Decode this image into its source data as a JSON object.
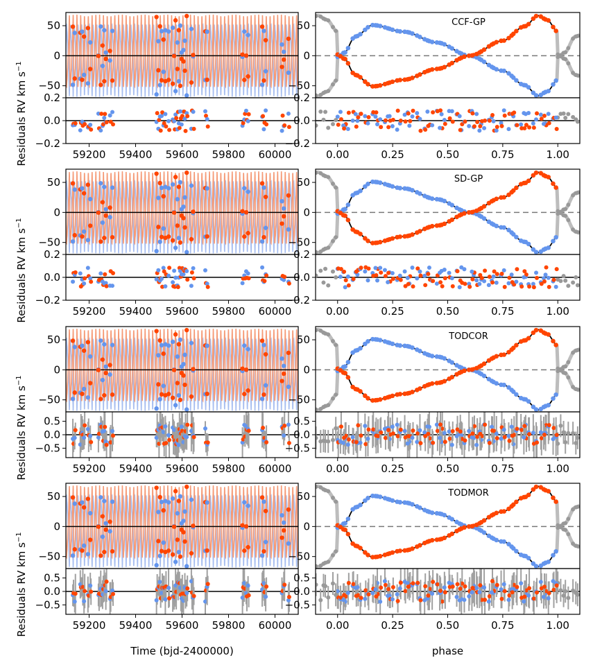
{
  "figure": {
    "colors": {
      "primary": "#6495ed",
      "secondary": "#ff4500",
      "primary_model": "#a7bef0",
      "secondary_model": "#f59a76",
      "folded": "#999999",
      "grid": "#000000"
    },
    "xlabel_time": "Time (bjd-2400000)",
    "xlabel_phase": "phase",
    "ylabel_rv": "RV km s",
    "ylabel_res": "Residuals"
  },
  "chart_data": [
    {
      "type": "scatter",
      "method": "CCF-GP",
      "panel": "time",
      "rv_ylim": [
        -70,
        72
      ],
      "rv_yticks": [
        -50,
        0,
        50
      ],
      "res_ylim": [
        -0.2,
        0.2
      ],
      "res_yticks": [
        -0.2,
        0.0,
        0.2
      ],
      "res_tick_labels": [
        "-0.2",
        "0.0",
        "0.2"
      ],
      "xlim": [
        59100,
        60100
      ],
      "xticks": [
        59200,
        59400,
        59600,
        59800,
        60000
      ],
      "error_bars": false
    },
    {
      "type": "scatter",
      "method": "CCF-GP",
      "panel": "phase",
      "title": "CCF-GP",
      "xlim": [
        -0.1,
        1.1
      ],
      "xticks": [
        0.0,
        0.25,
        0.5,
        0.75,
        1.0
      ],
      "xtick_labels": [
        "0.00",
        "0.25",
        "0.50",
        "0.75",
        "1.00"
      ]
    },
    {
      "type": "scatter",
      "method": "SD-GP",
      "panel": "time",
      "rv_ylim": [
        -70,
        72
      ],
      "rv_yticks": [
        -50,
        0,
        50
      ],
      "res_ylim": [
        -0.2,
        0.2
      ],
      "res_yticks": [
        -0.2,
        0.0,
        0.2
      ],
      "res_tick_labels": [
        "-0.2",
        "0.0",
        "0.2"
      ],
      "xlim": [
        59100,
        60100
      ],
      "xticks": [
        59200,
        59400,
        59600,
        59800,
        60000
      ],
      "error_bars": false
    },
    {
      "type": "scatter",
      "method": "SD-GP",
      "panel": "phase",
      "title": "SD-GP",
      "xlim": [
        -0.1,
        1.1
      ],
      "xticks": [
        0.0,
        0.25,
        0.5,
        0.75,
        1.0
      ],
      "xtick_labels": [
        "0.00",
        "0.25",
        "0.50",
        "0.75",
        "1.00"
      ]
    },
    {
      "type": "scatter",
      "method": "TODCOR",
      "panel": "time",
      "rv_ylim": [
        -70,
        72
      ],
      "rv_yticks": [
        -50,
        0,
        50
      ],
      "res_ylim": [
        -0.85,
        0.85
      ],
      "res_yticks": [
        -0.5,
        0.0,
        0.5
      ],
      "res_tick_labels": [
        "-0.5",
        "0.0",
        "0.5"
      ],
      "xlim": [
        59100,
        60100
      ],
      "xticks": [
        59200,
        59400,
        59600,
        59800,
        60000
      ],
      "error_bars": true
    },
    {
      "type": "scatter",
      "method": "TODCOR",
      "panel": "phase",
      "title": "TODCOR",
      "xlim": [
        -0.1,
        1.1
      ],
      "xticks": [
        0.0,
        0.25,
        0.5,
        0.75,
        1.0
      ],
      "xtick_labels": [
        "0.00",
        "0.25",
        "0.50",
        "0.75",
        "1.00"
      ]
    },
    {
      "type": "scatter",
      "method": "TODMOR",
      "panel": "time",
      "rv_ylim": [
        -70,
        72
      ],
      "rv_yticks": [
        -50,
        0,
        50
      ],
      "res_ylim": [
        -0.85,
        0.85
      ],
      "res_yticks": [
        -0.5,
        0.0,
        0.5
      ],
      "res_tick_labels": [
        "-0.5",
        "0.0",
        "0.5"
      ],
      "xlim": [
        59100,
        60100
      ],
      "xticks": [
        59200,
        59400,
        59600,
        59800,
        60000
      ],
      "error_bars": true
    },
    {
      "type": "scatter",
      "method": "TODMOR",
      "panel": "phase",
      "title": "TODMOR",
      "xlim": [
        -0.1,
        1.1
      ],
      "xticks": [
        0.0,
        0.25,
        0.5,
        0.75,
        1.0
      ],
      "xtick_labels": [
        "0.00",
        "0.25",
        "0.50",
        "0.75",
        "1.00"
      ]
    }
  ],
  "observation_times": [
    59130,
    59138,
    59162,
    59170,
    59178,
    59195,
    59205,
    59240,
    59250,
    59258,
    59265,
    59272,
    59290,
    59300,
    59490,
    59498,
    59505,
    59512,
    59520,
    59528,
    59542,
    59560,
    59566,
    59572,
    59580,
    59586,
    59592,
    59598,
    59606,
    59612,
    59620,
    59640,
    59648,
    59700,
    59708,
    59860,
    59868,
    59876,
    59884,
    59945,
    59952,
    59960,
    60030,
    60038,
    60058
  ]
}
